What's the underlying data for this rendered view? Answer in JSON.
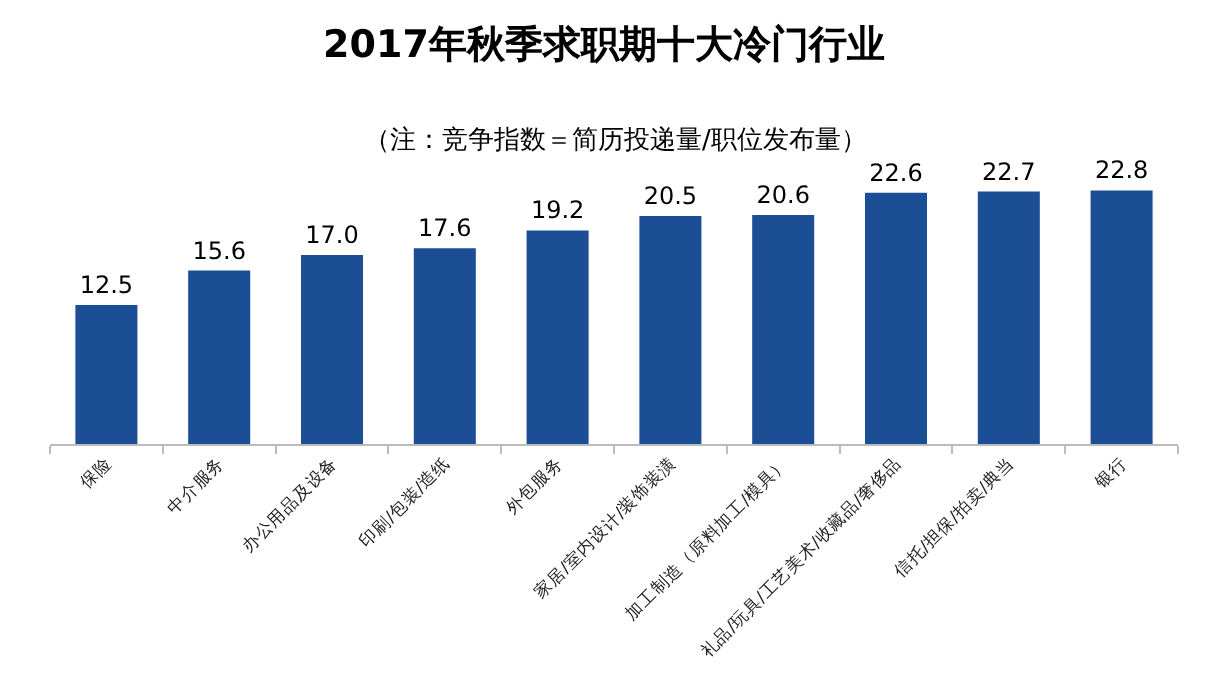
{
  "chart_data": {
    "type": "bar",
    "title": "2017年秋季求职期十大冷门行业",
    "subtitle": "（注：竞争指数＝简历投递量/职位发布量）",
    "categories": [
      "保险",
      "中介服务",
      "办公用品及设备",
      "印刷/包装/造纸",
      "外包服务",
      "家居/室内设计/装饰装潢",
      "加工制造（原料加工/模具）",
      "礼品/玩具/工艺美术/收藏品/奢侈品",
      "信托/担保/拍卖/典当",
      "银行"
    ],
    "values": [
      12.5,
      15.6,
      17.0,
      17.6,
      19.2,
      20.5,
      20.6,
      22.6,
      22.7,
      22.8
    ],
    "value_labels": [
      "12.5",
      "15.6",
      "17.0",
      "17.6",
      "19.2",
      "20.5",
      "20.6",
      "22.6",
      "22.7",
      "22.8"
    ],
    "color": "#1c4e96",
    "grid": false,
    "legend": false
  }
}
